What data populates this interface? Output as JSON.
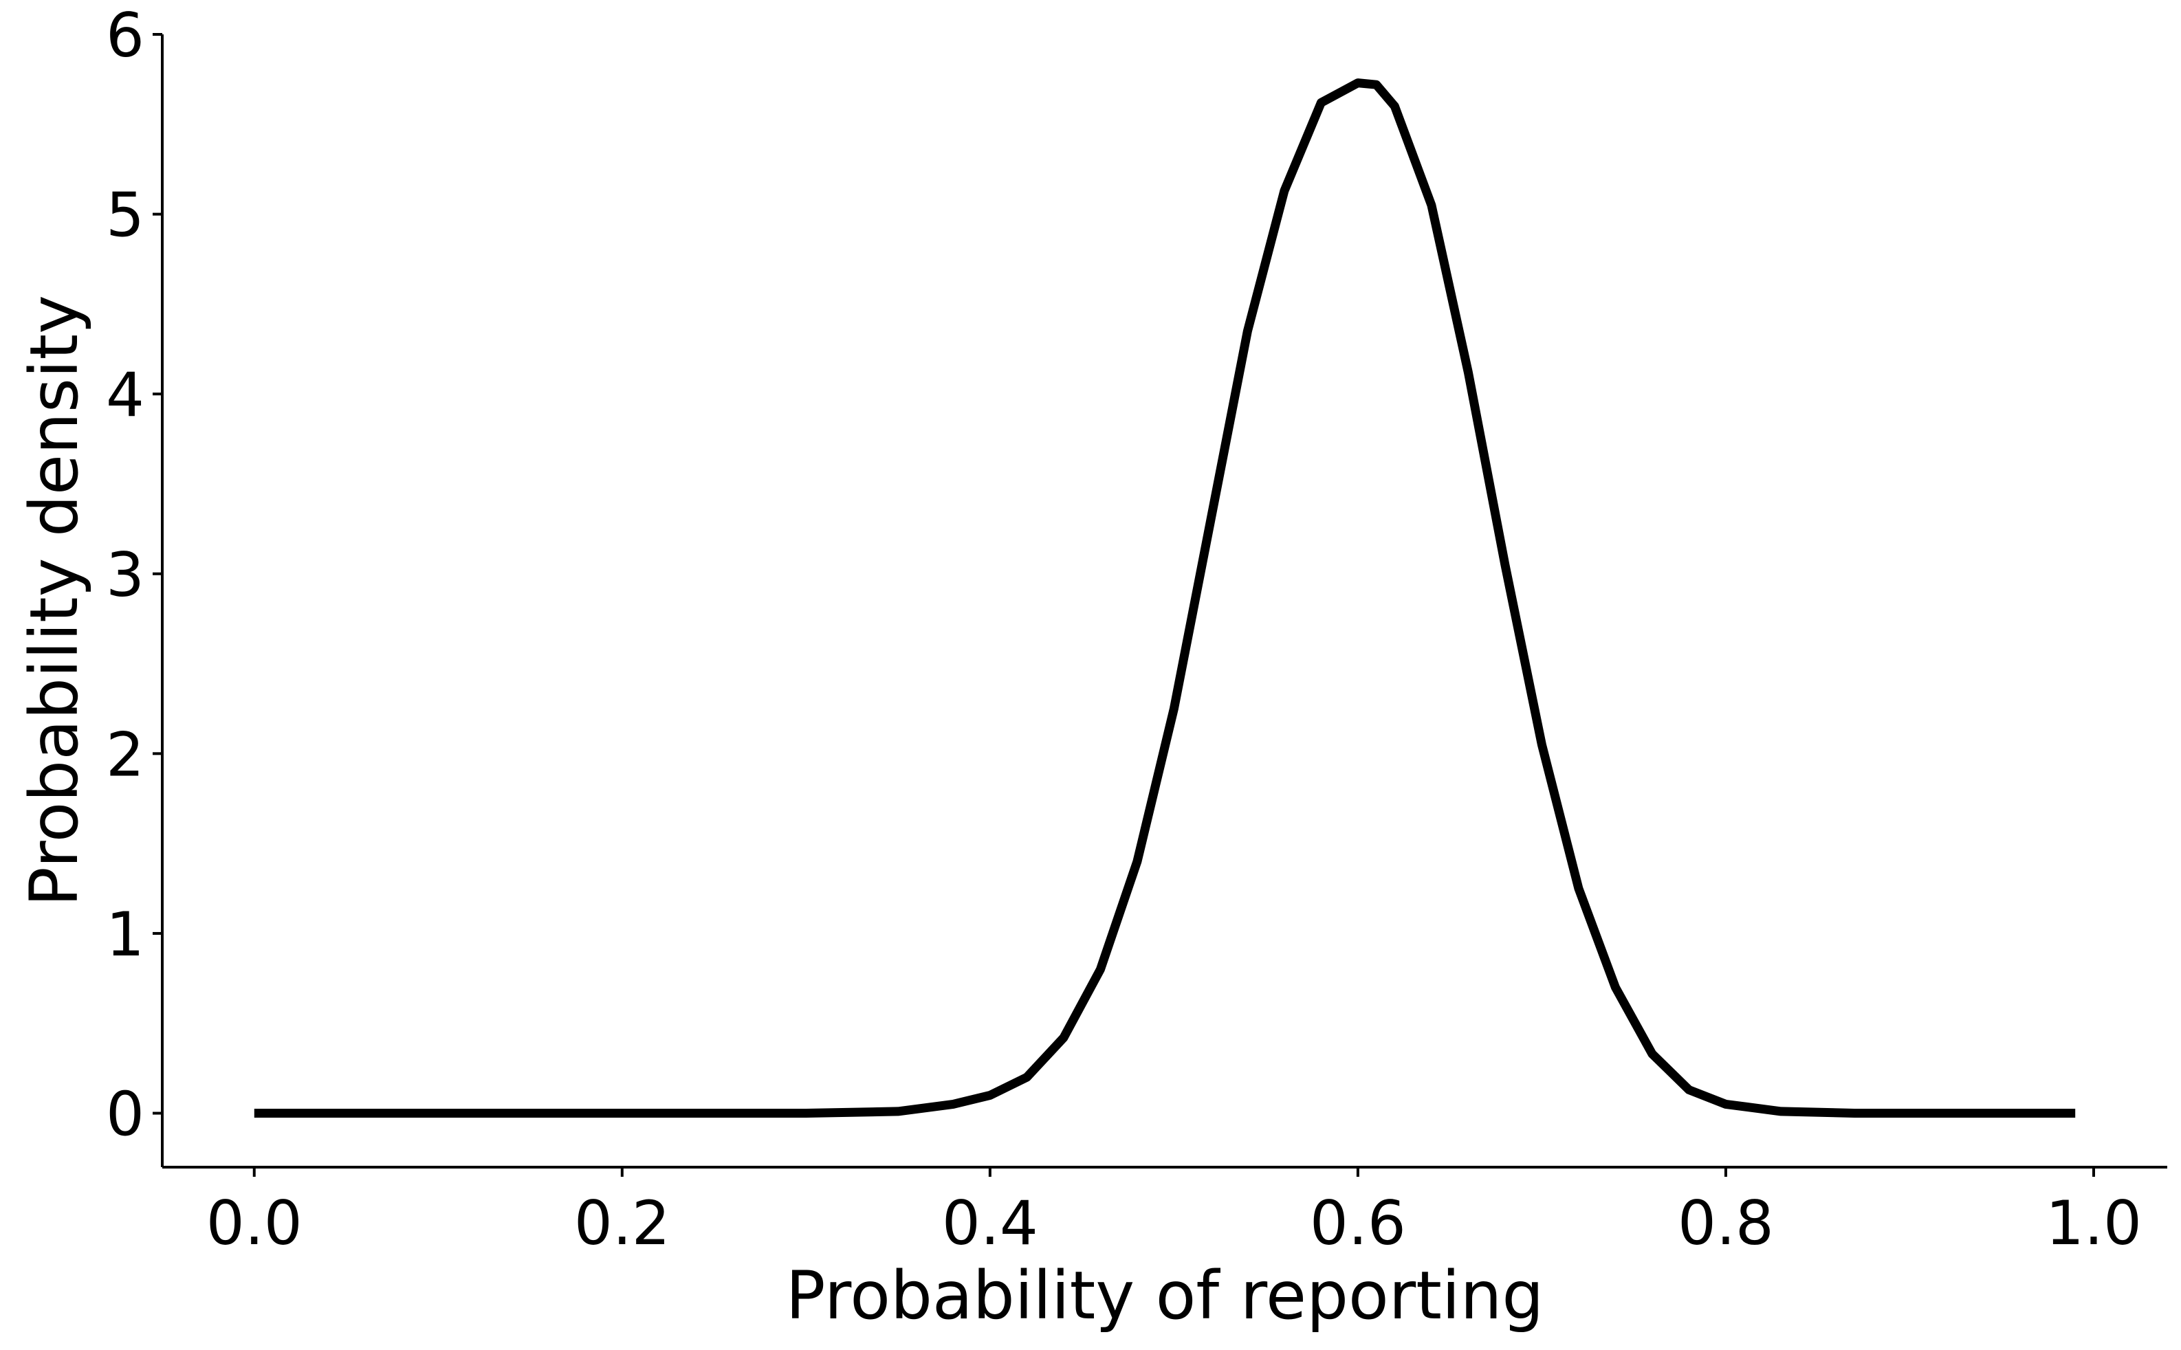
{
  "chart_data": {
    "type": "line",
    "title": "",
    "xlabel": "Probability of reporting",
    "ylabel": "Probability density",
    "xlim": [
      -0.05,
      1.04
    ],
    "ylim": [
      -0.3,
      6.0
    ],
    "x_ticks": [
      0.0,
      0.2,
      0.4,
      0.6,
      0.8,
      1.0
    ],
    "x_tick_labels": [
      "0.0",
      "0.2",
      "0.4",
      "0.6",
      "0.8",
      "1.0"
    ],
    "y_ticks": [
      0,
      1,
      2,
      3,
      4,
      5,
      6
    ],
    "y_tick_labels": [
      "0",
      "1",
      "2",
      "3",
      "4",
      "5",
      "6"
    ],
    "grid": false,
    "legend": "none",
    "colors": {
      "line": "#000000",
      "axes": "#000000",
      "background": "#ffffff"
    },
    "series": [
      {
        "x": [
          0.0,
          0.3,
          0.35,
          0.38,
          0.4,
          0.42,
          0.44,
          0.46,
          0.48,
          0.5,
          0.52,
          0.54,
          0.56,
          0.58,
          0.6,
          0.61,
          0.62,
          0.64,
          0.66,
          0.68,
          0.7,
          0.72,
          0.74,
          0.76,
          0.78,
          0.8,
          0.83,
          0.87,
          0.99
        ],
        "y": [
          0.0,
          0.0,
          0.01,
          0.05,
          0.1,
          0.2,
          0.42,
          0.8,
          1.4,
          2.25,
          3.3,
          4.35,
          5.13,
          5.62,
          5.73,
          5.72,
          5.6,
          5.05,
          4.12,
          3.05,
          2.05,
          1.25,
          0.7,
          0.33,
          0.13,
          0.05,
          0.01,
          0.0,
          0.0
        ]
      }
    ]
  }
}
